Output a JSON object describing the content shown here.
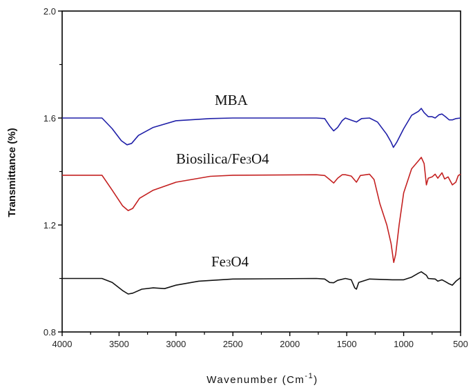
{
  "chart_data": {
    "type": "line",
    "title": "",
    "xlabel": "Wavenumber (Cm",
    "xlabel_sup": "-1",
    "xlabel_end": ")",
    "ylabel": "Transmittance (%)",
    "xlim": [
      4000,
      500
    ],
    "ylim": [
      0.8,
      2.0
    ],
    "x_reversed": true,
    "grid": false,
    "xticks": [
      4000,
      3500,
      3000,
      2500,
      2000,
      1500,
      1000,
      500
    ],
    "xtick_labels": [
      "4000",
      "3500",
      "3000",
      "2500",
      "2000",
      "1500",
      "1000",
      "500"
    ],
    "yticks": [
      0.8,
      1.2,
      1.6,
      2.0
    ],
    "ytick_labels": [
      "0.8",
      "1.2",
      "1.6",
      "2.0"
    ],
    "series": [
      {
        "name": "MBA",
        "label_main": "MBA",
        "label_sub": "",
        "label_end": "",
        "color": "#1f1fa8",
        "points": [
          [
            4000,
            1.6
          ],
          [
            3650,
            1.6
          ],
          [
            3560,
            1.56
          ],
          [
            3480,
            1.515
          ],
          [
            3430,
            1.5
          ],
          [
            3390,
            1.505
          ],
          [
            3330,
            1.535
          ],
          [
            3200,
            1.565
          ],
          [
            3000,
            1.59
          ],
          [
            2700,
            1.598
          ],
          [
            2500,
            1.6
          ],
          [
            1767,
            1.6
          ],
          [
            1694,
            1.598
          ],
          [
            1650,
            1.57
          ],
          [
            1615,
            1.552
          ],
          [
            1580,
            1.565
          ],
          [
            1540,
            1.59
          ],
          [
            1512,
            1.6
          ],
          [
            1460,
            1.592
          ],
          [
            1415,
            1.585
          ],
          [
            1370,
            1.598
          ],
          [
            1300,
            1.6
          ],
          [
            1230,
            1.585
          ],
          [
            1150,
            1.54
          ],
          [
            1110,
            1.51
          ],
          [
            1090,
            1.49
          ],
          [
            1060,
            1.51
          ],
          [
            1000,
            1.56
          ],
          [
            930,
            1.61
          ],
          [
            870,
            1.625
          ],
          [
            845,
            1.636
          ],
          [
            820,
            1.62
          ],
          [
            784,
            1.605
          ],
          [
            750,
            1.605
          ],
          [
            723,
            1.6
          ],
          [
            690,
            1.612
          ],
          [
            663,
            1.615
          ],
          [
            632,
            1.605
          ],
          [
            600,
            1.593
          ],
          [
            572,
            1.593
          ],
          [
            540,
            1.598
          ],
          [
            500,
            1.6
          ]
        ]
      },
      {
        "name": "Biosilica/Fe3O4",
        "label_main": "Biosilica/Fe",
        "label_sub": "3",
        "label_end": "O4",
        "color": "#c42020",
        "points": [
          [
            4000,
            1.386
          ],
          [
            3650,
            1.386
          ],
          [
            3560,
            1.33
          ],
          [
            3470,
            1.272
          ],
          [
            3420,
            1.254
          ],
          [
            3380,
            1.262
          ],
          [
            3320,
            1.3
          ],
          [
            3200,
            1.33
          ],
          [
            3000,
            1.36
          ],
          [
            2700,
            1.382
          ],
          [
            2500,
            1.386
          ],
          [
            1767,
            1.388
          ],
          [
            1694,
            1.385
          ],
          [
            1650,
            1.37
          ],
          [
            1615,
            1.357
          ],
          [
            1580,
            1.375
          ],
          [
            1540,
            1.388
          ],
          [
            1512,
            1.388
          ],
          [
            1460,
            1.383
          ],
          [
            1415,
            1.36
          ],
          [
            1380,
            1.385
          ],
          [
            1300,
            1.39
          ],
          [
            1260,
            1.37
          ],
          [
            1209,
            1.28
          ],
          [
            1148,
            1.2
          ],
          [
            1110,
            1.13
          ],
          [
            1087,
            1.06
          ],
          [
            1070,
            1.09
          ],
          [
            1040,
            1.2
          ],
          [
            1000,
            1.32
          ],
          [
            930,
            1.41
          ],
          [
            870,
            1.44
          ],
          [
            845,
            1.453
          ],
          [
            820,
            1.43
          ],
          [
            800,
            1.35
          ],
          [
            784,
            1.375
          ],
          [
            750,
            1.38
          ],
          [
            723,
            1.39
          ],
          [
            700,
            1.375
          ],
          [
            663,
            1.395
          ],
          [
            640,
            1.372
          ],
          [
            610,
            1.38
          ],
          [
            572,
            1.35
          ],
          [
            542,
            1.36
          ],
          [
            520,
            1.385
          ],
          [
            500,
            1.39
          ]
        ]
      },
      {
        "name": "Fe3O4",
        "label_main": "Fe",
        "label_sub": "3",
        "label_end": "O4",
        "color": "#111111",
        "points": [
          [
            4000,
            1.0
          ],
          [
            3650,
            1.0
          ],
          [
            3560,
            0.985
          ],
          [
            3470,
            0.955
          ],
          [
            3420,
            0.942
          ],
          [
            3380,
            0.945
          ],
          [
            3300,
            0.96
          ],
          [
            3200,
            0.965
          ],
          [
            3100,
            0.962
          ],
          [
            3000,
            0.975
          ],
          [
            2800,
            0.99
          ],
          [
            2500,
            0.998
          ],
          [
            1767,
            1.0
          ],
          [
            1694,
            0.998
          ],
          [
            1650,
            0.985
          ],
          [
            1615,
            0.984
          ],
          [
            1580,
            0.993
          ],
          [
            1512,
            1.0
          ],
          [
            1460,
            0.995
          ],
          [
            1430,
            0.965
          ],
          [
            1415,
            0.96
          ],
          [
            1395,
            0.985
          ],
          [
            1300,
            0.998
          ],
          [
            1100,
            0.995
          ],
          [
            1000,
            0.995
          ],
          [
            930,
            1.005
          ],
          [
            870,
            1.02
          ],
          [
            845,
            1.025
          ],
          [
            800,
            1.012
          ],
          [
            784,
            1.0
          ],
          [
            723,
            0.998
          ],
          [
            700,
            0.99
          ],
          [
            663,
            0.995
          ],
          [
            632,
            0.988
          ],
          [
            600,
            0.98
          ],
          [
            572,
            0.975
          ],
          [
            540,
            0.99
          ],
          [
            500,
            1.003
          ]
        ]
      }
    ]
  }
}
